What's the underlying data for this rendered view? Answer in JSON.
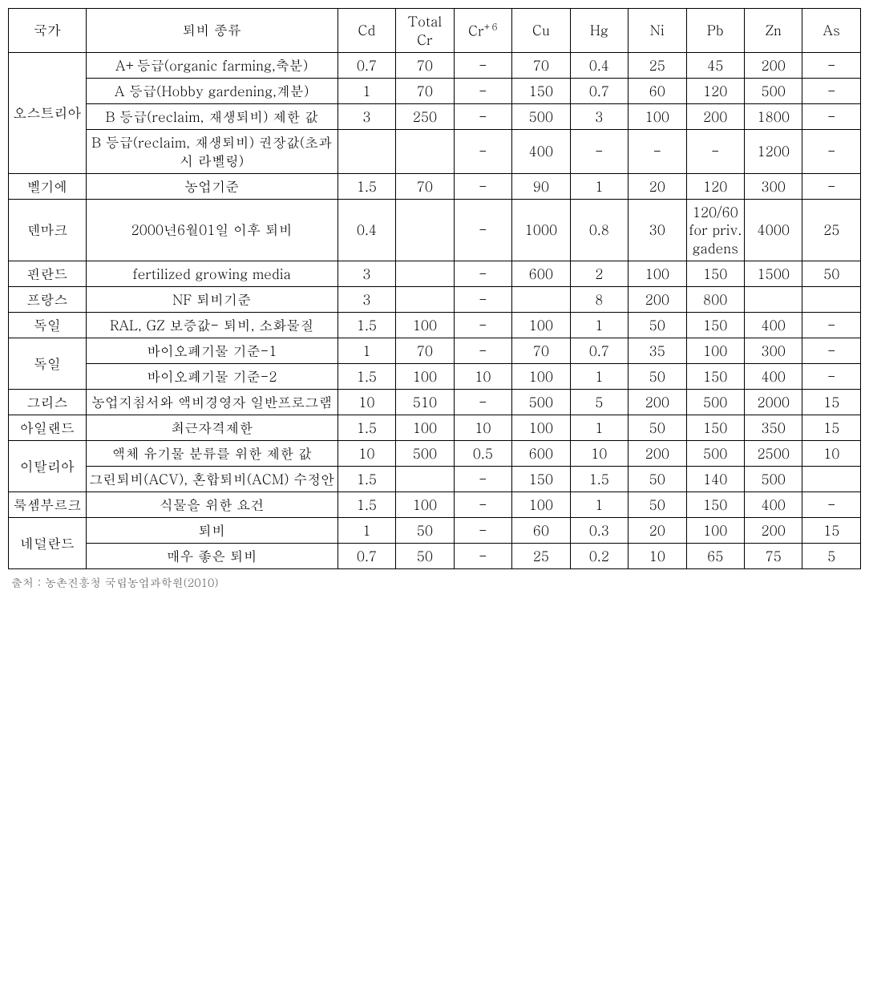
{
  "headers": {
    "country": "국가",
    "type": "퇴비 종류",
    "cd": "Cd",
    "total_cr": "Total Cr",
    "cr6_pre": "Cr",
    "cr6_sup": "+6",
    "cu": "Cu",
    "hg": "Hg",
    "ni": "Ni",
    "pb": "Pb",
    "zn": "Zn",
    "as": "As"
  },
  "countries": {
    "austria": "오스트리아",
    "belgium": "벨기에",
    "denmark": "덴마크",
    "finland": "핀란드",
    "france": "프랑스",
    "germany1": "독일",
    "germany2": "독일",
    "greece": "그리스",
    "ireland": "아일랜드",
    "italy": "이탈리아",
    "luxembourg": "룩셈부르크",
    "netherlands": "네덜란드"
  },
  "rows": {
    "aut_a_plus": {
      "type": "A+등급(organic farming,축분)",
      "cd": "0.7",
      "tcr": "70",
      "cr6": "-",
      "cu": "70",
      "hg": "0.4",
      "ni": "25",
      "pb": "45",
      "zn": "200",
      "as": "-"
    },
    "aut_a": {
      "type": "A 등급(Hobby gardening,계분)",
      "cd": "1",
      "tcr": "70",
      "cr6": "-",
      "cu": "150",
      "hg": "0.7",
      "ni": "60",
      "pb": "120",
      "zn": "500",
      "as": "-"
    },
    "aut_b_lim": {
      "type": "B 등급(reclaim, 재생퇴비) 제한 값",
      "cd": "3",
      "tcr": "250",
      "cr6": "-",
      "cu": "500",
      "hg": "3",
      "ni": "100",
      "pb": "200",
      "zn": "1800",
      "as": "-"
    },
    "aut_b_rec": {
      "type": "B 등급(reclaim, 재생퇴비) 권장값(초과시 라벨링)",
      "cd": "",
      "tcr": "",
      "cr6": "-",
      "cu": "400",
      "hg": "-",
      "ni": "-",
      "pb": "-",
      "zn": "1200",
      "as": "-"
    },
    "bel": {
      "type": "농업기준",
      "cd": "1.5",
      "tcr": "70",
      "cr6": "-",
      "cu": "90",
      "hg": "1",
      "ni": "20",
      "pb": "120",
      "zn": "300",
      "as": "-"
    },
    "dnk": {
      "type": "2000년6월01일 이후 퇴비",
      "cd": "0.4",
      "tcr": "",
      "cr6": "-",
      "cu": "1000",
      "hg": "0.8",
      "ni": "30",
      "pb": "120/60 for priv. gadens",
      "zn": "4000",
      "as": "25"
    },
    "fin": {
      "type": "fertilized growing media",
      "cd": "3",
      "tcr": "",
      "cr6": "-",
      "cu": "600",
      "hg": "2",
      "ni": "100",
      "pb": "150",
      "zn": "1500",
      "as": "50"
    },
    "fra": {
      "type": "NF 퇴비기준",
      "cd": "3",
      "tcr": "",
      "cr6": "-",
      "cu": "",
      "hg": "8",
      "ni": "200",
      "pb": "800",
      "zn": "",
      "as": ""
    },
    "deu_ral": {
      "type": "RAL, GZ 보증값- 퇴비, 소화물질",
      "cd": "1.5",
      "tcr": "100",
      "cr6": "-",
      "cu": "100",
      "hg": "1",
      "ni": "50",
      "pb": "150",
      "zn": "400",
      "as": "-"
    },
    "deu_bio1": {
      "type": "바이오폐기물 기준-1",
      "cd": "1",
      "tcr": "70",
      "cr6": "-",
      "cu": "70",
      "hg": "0.7",
      "ni": "35",
      "pb": "100",
      "zn": "300",
      "as": "-"
    },
    "deu_bio2": {
      "type": "바이오폐기물 기준-2",
      "cd": "1.5",
      "tcr": "100",
      "cr6": "10",
      "cu": "100",
      "hg": "1",
      "ni": "50",
      "pb": "150",
      "zn": "400",
      "as": "-"
    },
    "grc": {
      "type": "농업지침서와 액비경영자 일반프로그램",
      "cd": "10",
      "tcr": "510",
      "cr6": "-",
      "cu": "500",
      "hg": "5",
      "ni": "200",
      "pb": "500",
      "zn": "2000",
      "as": "15"
    },
    "irl": {
      "type": "최근자격제한",
      "cd": "1.5",
      "tcr": "100",
      "cr6": "10",
      "cu": "100",
      "hg": "1",
      "ni": "50",
      "pb": "150",
      "zn": "350",
      "as": "15"
    },
    "ita1": {
      "type": "액체 유기물 분류를 위한 제한 값",
      "cd": "10",
      "tcr": "500",
      "cr6": "0.5",
      "cu": "600",
      "hg": "10",
      "ni": "200",
      "pb": "500",
      "zn": "2500",
      "as": "10"
    },
    "ita2": {
      "type": "그린퇴비(ACV), 혼합퇴비(ACM) 수정안",
      "cd": "1.5",
      "tcr": "",
      "cr6": "-",
      "cu": "150",
      "hg": "1.5",
      "ni": "50",
      "pb": "140",
      "zn": "500",
      "as": ""
    },
    "lux": {
      "type": "식물을 위한 요건",
      "cd": "1.5",
      "tcr": "100",
      "cr6": "-",
      "cu": "100",
      "hg": "1",
      "ni": "50",
      "pb": "150",
      "zn": "400",
      "as": "-"
    },
    "nld1": {
      "type": "퇴비",
      "cd": "1",
      "tcr": "50",
      "cr6": "-",
      "cu": "60",
      "hg": "0.3",
      "ni": "20",
      "pb": "100",
      "zn": "200",
      "as": "15"
    },
    "nld2": {
      "type": "매우 좋은 퇴비",
      "cd": "0.7",
      "tcr": "50",
      "cr6": "-",
      "cu": "25",
      "hg": "0.2",
      "ni": "10",
      "pb": "65",
      "zn": "75",
      "as": "5"
    }
  },
  "source": "출처 : 농촌진흥청 국립농업과학원(2010)"
}
